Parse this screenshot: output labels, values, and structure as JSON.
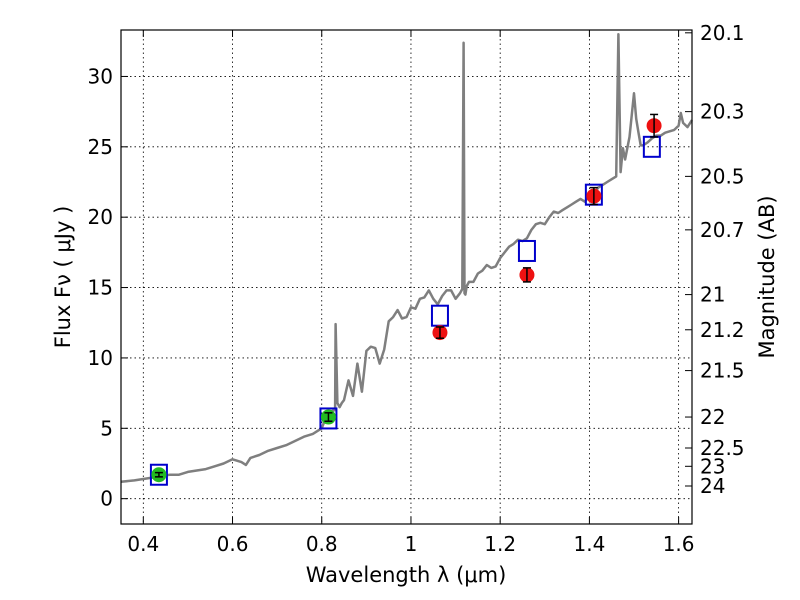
{
  "chart_data": {
    "type": "scatter",
    "xlabel": "Wavelength  λ (μm)",
    "ylabel": "Flux  Fν  ( μJy )",
    "ylabel_right": "Magnitude (AB)",
    "xlim": [
      0.35,
      1.63
    ],
    "ylim": [
      -1.8,
      33.3
    ],
    "grid": true,
    "x_ticks": [
      0.4,
      0.6,
      0.8,
      1.0,
      1.2,
      1.4,
      1.6
    ],
    "x_tick_labels": [
      "0.4",
      "0.6",
      "0.8",
      "1",
      "1.2",
      "1.4",
      "1.6"
    ],
    "y_ticks": [
      0,
      5,
      10,
      15,
      20,
      25,
      30
    ],
    "y_tick_labels": [
      "0",
      "5",
      "10",
      "15",
      "20",
      "25",
      "30"
    ],
    "right_ticks": [
      {
        "label": "20.1",
        "flux": 33.1
      },
      {
        "label": "20.3",
        "flux": 27.5
      },
      {
        "label": "20.5",
        "flux": 22.9
      },
      {
        "label": "20.7",
        "flux": 19.1
      },
      {
        "label": "21",
        "flux": 14.5
      },
      {
        "label": "21.2",
        "flux": 12.0
      },
      {
        "label": "21.5",
        "flux": 9.1
      },
      {
        "label": "22",
        "flux": 5.8
      },
      {
        "label": "22.5",
        "flux": 3.6
      },
      {
        "label": "23",
        "flux": 2.3
      },
      {
        "label": "24",
        "flux": 0.9
      }
    ],
    "series": [
      {
        "kind": "line",
        "color": "#7f7f7f",
        "x": [
          0.35,
          0.38,
          0.4,
          0.42,
          0.44,
          0.46,
          0.48,
          0.5,
          0.52,
          0.54,
          0.56,
          0.58,
          0.6,
          0.62,
          0.63,
          0.64,
          0.66,
          0.68,
          0.7,
          0.72,
          0.74,
          0.76,
          0.78,
          0.8,
          0.81,
          0.82,
          0.83,
          0.831,
          0.835,
          0.84,
          0.845,
          0.85,
          0.86,
          0.87,
          0.88,
          0.89,
          0.9,
          0.91,
          0.92,
          0.93,
          0.94,
          0.95,
          0.96,
          0.97,
          0.98,
          0.99,
          1.0,
          1.01,
          1.02,
          1.03,
          1.04,
          1.05,
          1.06,
          1.07,
          1.08,
          1.09,
          1.1,
          1.11,
          1.115,
          1.118,
          1.12,
          1.122,
          1.125,
          1.13,
          1.14,
          1.15,
          1.16,
          1.17,
          1.18,
          1.19,
          1.2,
          1.21,
          1.22,
          1.23,
          1.24,
          1.25,
          1.26,
          1.27,
          1.28,
          1.29,
          1.3,
          1.31,
          1.32,
          1.33,
          1.34,
          1.35,
          1.36,
          1.37,
          1.38,
          1.39,
          1.4,
          1.41,
          1.42,
          1.43,
          1.44,
          1.45,
          1.46,
          1.465,
          1.47,
          1.475,
          1.48,
          1.49,
          1.5,
          1.505,
          1.51,
          1.515,
          1.52,
          1.53,
          1.54,
          1.55,
          1.56,
          1.57,
          1.58,
          1.59,
          1.6,
          1.605,
          1.61,
          1.62,
          1.63
        ],
        "y": [
          1.2,
          1.3,
          1.4,
          1.5,
          1.6,
          1.7,
          1.7,
          1.9,
          2.0,
          2.1,
          2.3,
          2.5,
          2.8,
          2.6,
          2.4,
          2.9,
          3.1,
          3.4,
          3.6,
          3.8,
          4.1,
          4.4,
          4.6,
          5.0,
          5.8,
          6.2,
          6.3,
          12.4,
          6.8,
          6.5,
          6.8,
          7.0,
          8.4,
          7.3,
          9.6,
          7.6,
          10.5,
          10.8,
          10.7,
          9.6,
          10.6,
          12.6,
          12.9,
          13.4,
          12.8,
          12.9,
          13.6,
          13.5,
          14.2,
          14.3,
          14.8,
          14.2,
          13.8,
          14.4,
          14.8,
          14.8,
          14.2,
          14.6,
          14.9,
          32.4,
          14.6,
          14.5,
          15.1,
          15.4,
          15.4,
          16.0,
          16.2,
          16.6,
          16.4,
          16.5,
          17.1,
          17.5,
          17.9,
          18.1,
          18.4,
          18.3,
          18.5,
          19.1,
          19.5,
          19.6,
          19.5,
          20.0,
          20.4,
          20.3,
          20.5,
          20.7,
          20.9,
          21.1,
          21.3,
          21.1,
          21.6,
          21.7,
          22.1,
          22.3,
          22.5,
          22.7,
          22.9,
          33.0,
          23.2,
          24.9,
          24.1,
          25.7,
          28.8,
          27.0,
          26.0,
          25.1,
          25.1,
          25.3,
          25.6,
          25.8,
          25.8,
          26.0,
          26.1,
          26.2,
          26.5,
          27.4,
          26.7,
          26.4,
          26.9
        ]
      },
      {
        "kind": "open-squares",
        "color": "#0000cc",
        "x": [
          0.435,
          0.815,
          1.065,
          1.26,
          1.41,
          1.54
        ],
        "y": [
          1.7,
          5.7,
          13.0,
          17.6,
          21.6,
          25.0
        ]
      },
      {
        "kind": "points-with-errorbars",
        "color": "#22bb22",
        "x": [
          0.435,
          0.815
        ],
        "y": [
          1.7,
          5.8
        ],
        "err": [
          0.15,
          0.3
        ]
      },
      {
        "kind": "points-with-errorbars",
        "color": "#ee1111",
        "x": [
          1.065,
          1.26,
          1.41,
          1.545
        ],
        "y": [
          11.8,
          15.9,
          21.5,
          26.5
        ],
        "err": [
          0.4,
          0.5,
          0.6,
          0.8
        ]
      }
    ]
  }
}
